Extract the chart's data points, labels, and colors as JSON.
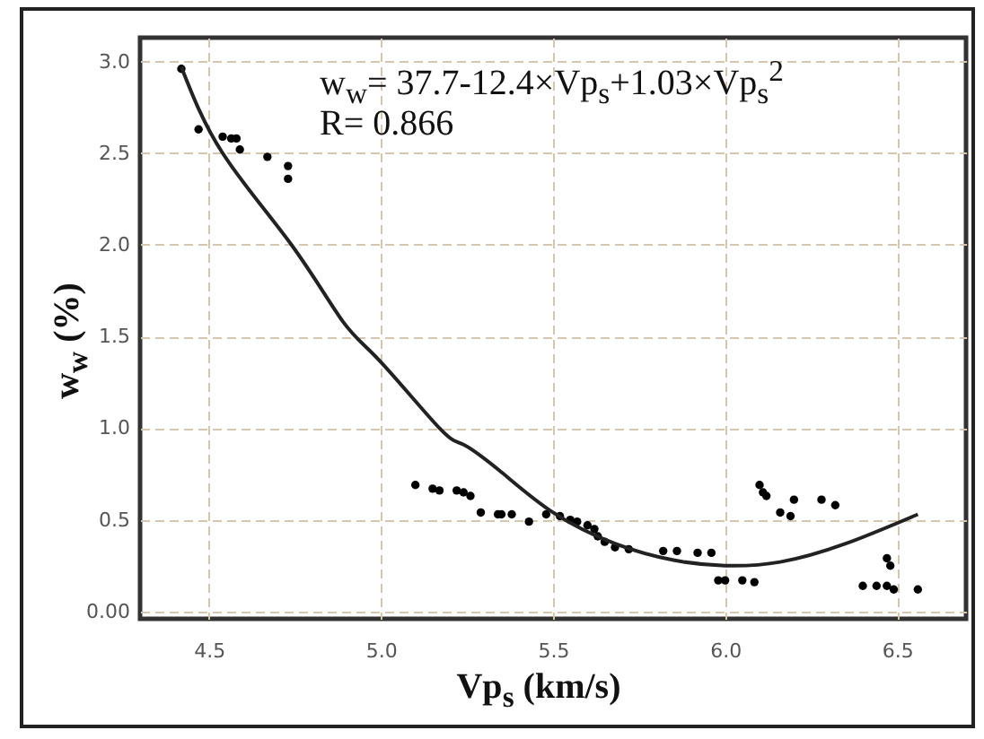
{
  "chart_data": {
    "type": "scatter",
    "xlabel": "Vp$_{s}$ (km/s)",
    "ylabel": "w$_{w}$ (%)",
    "xlim": [
      4.3,
      6.7
    ],
    "ylim": [
      -0.04,
      3.13
    ],
    "xticks": [
      4.5,
      {
        "value": 5,
        "label": "5.0"
      },
      5.5,
      {
        "value": 6,
        "label": "6.0"
      },
      6.5
    ],
    "yticks": [
      {
        "value": 0,
        "label": "0.00"
      },
      0.5,
      {
        "value": 1,
        "label": "1.0"
      },
      1.5,
      {
        "value": 2,
        "label": "2.0"
      },
      2.5,
      {
        "value": 3,
        "label": "3.0"
      }
    ],
    "grid": true,
    "annotations": [
      "w$_{w}$= 37.7-12.4×Vp$_{s}$+1.03×Vp$_{s}$$^{2}$",
      "R= 0.866"
    ],
    "series": [
      {
        "marker": "circle",
        "color": "#000000",
        "x": [
          4.42,
          4.47,
          4.54,
          4.565,
          4.58,
          4.59,
          4.67,
          4.73,
          4.73,
          5.1,
          5.15,
          5.17,
          5.22,
          5.24,
          5.26,
          5.29,
          5.34,
          5.35,
          5.38,
          5.43,
          5.48,
          5.52,
          5.55,
          5.57,
          5.6,
          5.62,
          5.63,
          5.65,
          5.68,
          5.72,
          5.82,
          5.86,
          5.92,
          5.96,
          5.98,
          6.0,
          6.05,
          6.085,
          6.1,
          6.11,
          6.12,
          6.16,
          6.19,
          6.2,
          6.28,
          6.32,
          6.4,
          6.44,
          6.47,
          6.49,
          6.47,
          6.48,
          6.56
        ],
        "values": [
          2.96,
          2.63,
          2.59,
          2.58,
          2.58,
          2.52,
          2.48,
          2.43,
          2.36,
          0.69,
          0.67,
          0.66,
          0.66,
          0.65,
          0.63,
          0.54,
          0.53,
          0.53,
          0.53,
          0.49,
          0.53,
          0.52,
          0.5,
          0.49,
          0.47,
          0.45,
          0.41,
          0.38,
          0.35,
          0.34,
          0.33,
          0.33,
          0.32,
          0.32,
          0.17,
          0.17,
          0.17,
          0.16,
          0.69,
          0.65,
          0.63,
          0.54,
          0.52,
          0.61,
          0.61,
          0.58,
          0.14,
          0.14,
          0.14,
          0.12,
          0.29,
          0.25,
          0.12
        ]
      },
      {
        "type": "line",
        "marker": "none",
        "color": "#222222",
        "x": [
          4.42,
          4.54,
          4.74,
          4.89,
          5.0,
          5.17,
          5.24,
          5.35,
          5.5,
          5.68,
          5.85,
          6.0,
          6.16,
          6.35,
          6.56
        ],
        "values": [
          2.97,
          2.5,
          2.0,
          1.58,
          1.36,
          1.0,
          0.91,
          0.76,
          0.54,
          0.37,
          0.28,
          0.25,
          0.27,
          0.37,
          0.53
        ]
      }
    ]
  }
}
